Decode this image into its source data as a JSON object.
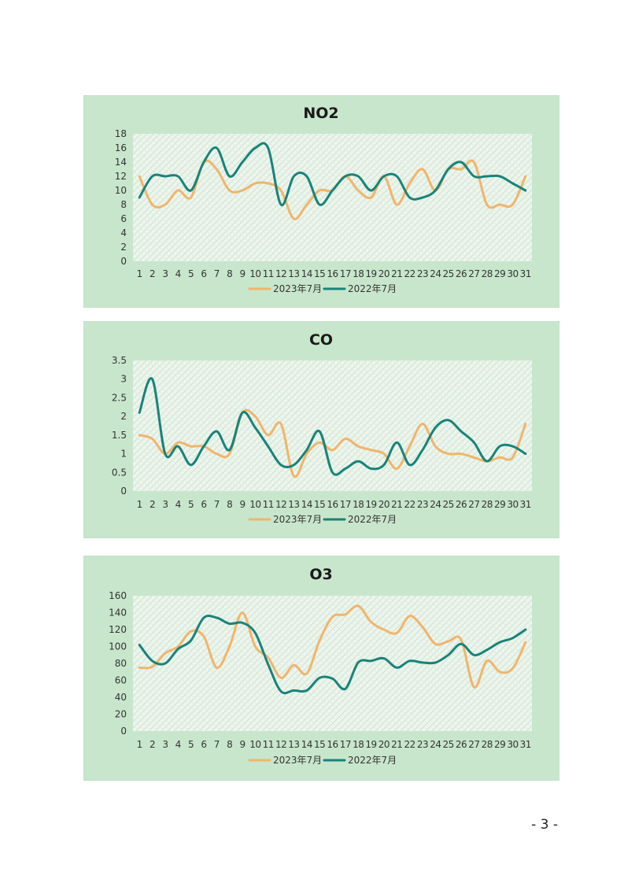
{
  "colors": {
    "s2023": "#f0b56c",
    "s2022": "#19837a",
    "panel": "#c8e6cc",
    "plot_bg": "#eef5ee",
    "hatch": "#cfe6d3"
  },
  "legend": {
    "s2023": "2023年7月",
    "s2022": "2022年7月"
  },
  "page_number": "- 3 -",
  "chart_data": [
    {
      "type": "line",
      "title": "NO2",
      "x": [
        1,
        2,
        3,
        4,
        5,
        6,
        7,
        8,
        9,
        10,
        11,
        12,
        13,
        14,
        15,
        16,
        17,
        18,
        19,
        20,
        21,
        22,
        23,
        24,
        25,
        26,
        27,
        28,
        29,
        30,
        31
      ],
      "ylim": [
        0,
        18
      ],
      "yticks": [
        0,
        2,
        4,
        6,
        8,
        10,
        12,
        14,
        16,
        18
      ],
      "series": [
        {
          "name": "2023年7月",
          "color": "#f0b56c",
          "values": [
            12,
            8,
            8,
            10,
            9,
            14,
            13,
            10,
            10,
            11,
            11,
            10,
            6,
            8,
            10,
            10,
            12,
            10,
            9,
            12,
            8,
            11,
            13,
            10,
            13,
            13,
            14,
            8,
            8,
            8,
            12
          ]
        },
        {
          "name": "2022年7月",
          "color": "#19837a",
          "values": [
            9,
            12,
            12,
            12,
            10,
            14,
            16,
            12,
            14,
            16,
            16,
            8,
            12,
            12,
            8,
            10,
            12,
            12,
            10,
            12,
            12,
            9,
            9,
            10,
            13,
            14,
            12,
            12,
            12,
            11,
            10
          ]
        }
      ]
    },
    {
      "type": "line",
      "title": "CO",
      "x": [
        1,
        2,
        3,
        4,
        5,
        6,
        7,
        8,
        9,
        10,
        11,
        12,
        13,
        14,
        15,
        16,
        17,
        18,
        19,
        20,
        21,
        22,
        23,
        24,
        25,
        26,
        27,
        28,
        29,
        30,
        31
      ],
      "ylim": [
        0,
        3.5
      ],
      "yticks": [
        0,
        0.5,
        1,
        1.5,
        2,
        2.5,
        3,
        3.5
      ],
      "series": [
        {
          "name": "2023年7月",
          "color": "#f0b56c",
          "values": [
            1.5,
            1.4,
            1.0,
            1.3,
            1.2,
            1.2,
            1.0,
            1.0,
            2.1,
            2.0,
            1.5,
            1.8,
            0.4,
            1.0,
            1.3,
            1.1,
            1.4,
            1.2,
            1.1,
            1.0,
            0.6,
            1.2,
            1.8,
            1.2,
            1.0,
            1.0,
            0.9,
            0.8,
            0.9,
            0.9,
            1.8
          ]
        },
        {
          "name": "2022年7月",
          "color": "#19837a",
          "values": [
            2.1,
            3.0,
            1.0,
            1.2,
            0.7,
            1.2,
            1.6,
            1.1,
            2.1,
            1.7,
            1.2,
            0.7,
            0.7,
            1.1,
            1.6,
            0.5,
            0.6,
            0.8,
            0.6,
            0.7,
            1.3,
            0.7,
            1.1,
            1.7,
            1.9,
            1.6,
            1.3,
            0.8,
            1.2,
            1.2,
            1.0
          ]
        }
      ]
    },
    {
      "type": "line",
      "title": "O3",
      "x": [
        1,
        2,
        3,
        4,
        5,
        6,
        7,
        8,
        9,
        10,
        11,
        12,
        13,
        14,
        15,
        16,
        17,
        18,
        19,
        20,
        21,
        22,
        23,
        24,
        25,
        26,
        27,
        28,
        29,
        30,
        31
      ],
      "ylim": [
        0,
        160
      ],
      "yticks": [
        0,
        20,
        40,
        60,
        80,
        100,
        120,
        140,
        160
      ],
      "series": [
        {
          "name": "2023年7月",
          "color": "#f0b56c",
          "values": [
            75,
            76,
            92,
            100,
            118,
            112,
            75,
            100,
            140,
            100,
            87,
            63,
            78,
            68,
            107,
            135,
            138,
            148,
            129,
            120,
            116,
            136,
            123,
            103,
            106,
            108,
            52,
            83,
            70,
            74,
            105
          ]
        },
        {
          "name": "2022年7月",
          "color": "#19837a",
          "values": [
            102,
            83,
            80,
            97,
            107,
            134,
            134,
            127,
            128,
            116,
            79,
            47,
            48,
            48,
            63,
            62,
            50,
            81,
            83,
            86,
            75,
            83,
            81,
            81,
            90,
            103,
            90,
            96,
            105,
            110,
            120
          ]
        }
      ]
    }
  ]
}
